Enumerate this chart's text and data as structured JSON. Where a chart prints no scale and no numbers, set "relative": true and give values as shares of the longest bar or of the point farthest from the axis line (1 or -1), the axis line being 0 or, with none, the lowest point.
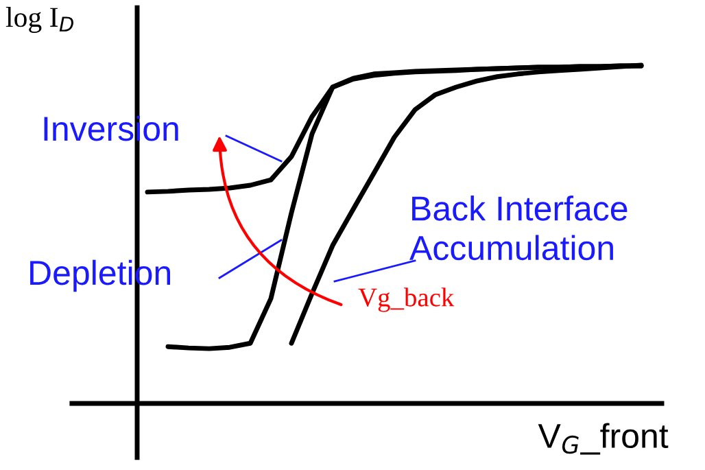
{
  "chart_data": {
    "type": "line",
    "relative": true,
    "xlabel": "V$_{G}$_front",
    "ylabel": "log I$_{D}$",
    "categories": [
      null,
      null,
      null,
      null,
      null,
      null,
      null,
      null,
      null,
      null,
      null,
      null,
      null,
      null,
      null,
      null,
      null,
      null,
      null,
      null,
      null,
      null,
      null,
      null,
      null
    ],
    "tick_labels": false,
    "marker": "none",
    "line_style": "solid",
    "series": [
      {
        "color": "#000000",
        "values": [
          0.625,
          0.627,
          0.631,
          0.633,
          0.637,
          0.645,
          0.661,
          0.73,
          0.848,
          0.935,
          0.959,
          0.97,
          0.976,
          0.98,
          0.982,
          0.984,
          0.988,
          0.99,
          0.992,
          0.994,
          0.994,
          0.996,
          0.996,
          0.998,
          0.998
        ]
      },
      {
        "color": "#000000",
        "values": [
          null,
          0.168,
          0.164,
          0.162,
          0.166,
          0.178,
          0.31,
          0.564,
          0.797,
          0.935,
          0.961,
          0.974,
          0.978,
          0.982,
          0.984,
          0.986,
          0.988,
          0.99,
          0.992,
          0.994,
          0.994,
          0.996,
          0.996,
          0.998,
          0.998
        ]
      },
      {
        "color": "#000000",
        "values": [
          null,
          null,
          null,
          null,
          null,
          null,
          null,
          0.178,
          0.325,
          0.467,
          0.574,
          0.68,
          0.787,
          0.868,
          0.913,
          0.935,
          0.953,
          0.966,
          0.974,
          0.98,
          0.984,
          0.988,
          0.992,
          0.996,
          1.0
        ]
      }
    ],
    "annotations": [
      "Inversion",
      "Depletion",
      "Back Interface\nAccumulation",
      "Vg_back"
    ]
  }
}
